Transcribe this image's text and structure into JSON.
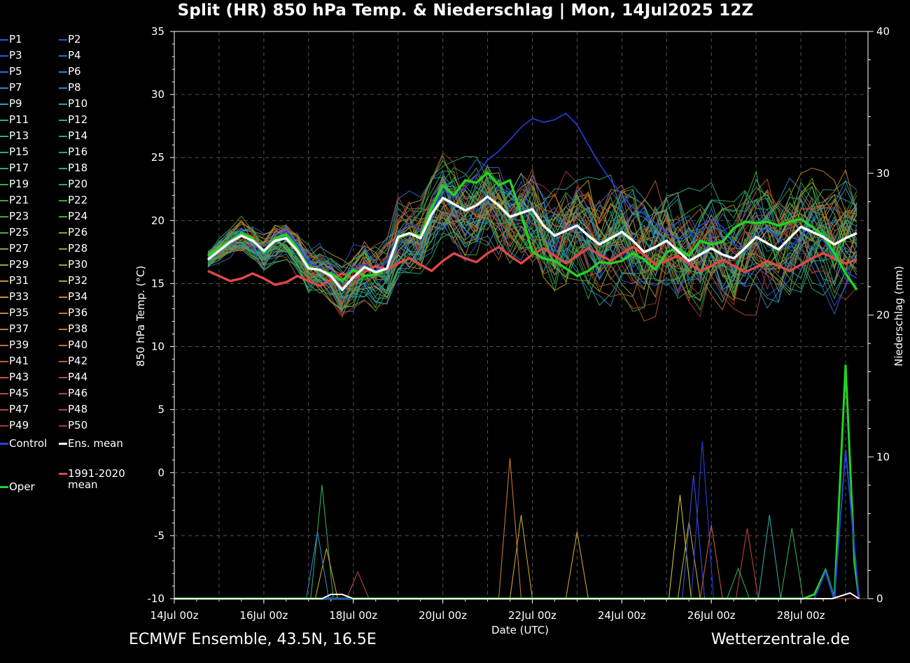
{
  "title": "Split  (HR)  850 hPa Temp. & Niederschlag | Mon, 14Jul2025 12Z",
  "footer_left": "ECMWF Ensemble, 43.5N, 16.5E",
  "footer_right": "Wetterzentrale.de",
  "legend": {
    "members": [
      "P1",
      "P2",
      "P3",
      "P4",
      "P5",
      "P6",
      "P7",
      "P8",
      "P9",
      "P10",
      "P11",
      "P12",
      "P13",
      "P14",
      "P15",
      "P16",
      "P17",
      "P18",
      "P19",
      "P20",
      "P21",
      "P22",
      "P23",
      "P24",
      "P25",
      "P26",
      "P27",
      "P28",
      "P29",
      "P30",
      "P31",
      "P32",
      "P33",
      "P34",
      "P35",
      "P36",
      "P37",
      "P38",
      "P39",
      "P40",
      "P41",
      "P42",
      "P43",
      "P44",
      "P45",
      "P46",
      "P47",
      "P48",
      "P49",
      "P50"
    ],
    "member_colors": [
      "#2f54d8",
      "#2e6ad8",
      "#2e86c8",
      "#2c9fb8",
      "#2aa9a0",
      "#29a888",
      "#2ea870",
      "#33aa55",
      "#3aaa3a",
      "#48b032",
      "#8aa82c",
      "#aaa02c",
      "#c09a2c",
      "#c88a2c",
      "#c8782e",
      "#c86a30",
      "#c85c32",
      "#b84c32",
      "#b84438",
      "#a83a2e"
    ],
    "control_label": "Control",
    "control_color": "#2a3ee0",
    "ens_mean_label": "Ens. mean",
    "ens_mean_color": "#ffffff",
    "clim_label_line1": "1991-2020",
    "clim_label_line2": "mean",
    "clim_color": "#e04848",
    "oper_label": "Oper",
    "oper_color": "#22d322"
  },
  "chart_data": {
    "type": "line",
    "ylabel": "850 hPa Temp. (°C)",
    "y2label": "Niederschlag (mm)",
    "xlabel": "Date (UTC)",
    "ylim": [
      -10,
      35
    ],
    "y2lim": [
      0,
      40
    ],
    "yticks": [
      "35",
      "30",
      "25",
      "20",
      "15",
      "10",
      "5",
      "0",
      "-5",
      "-10"
    ],
    "y2ticks": [
      "40",
      "30",
      "20",
      "10",
      "0"
    ],
    "x_start": "14Jul 00z",
    "x_end": "29Jul 12z",
    "xticks": [
      "14Jul 00z",
      "16Jul 00z",
      "18Jul 00z",
      "20Jul 00z",
      "22Jul 00z",
      "24Jul 00z",
      "26Jul 00z",
      "28Jul 00z"
    ],
    "grid": true,
    "series": [
      {
        "name": "Oper",
        "color": "#22d322",
        "x_days": [
          0.75,
          1,
          1.25,
          1.5,
          1.75,
          2,
          2.25,
          2.5,
          2.75,
          3,
          3.25,
          3.5,
          3.75,
          4,
          4.25,
          4.5,
          4.75,
          5,
          5.25,
          5.5,
          5.75,
          6,
          6.25,
          6.5,
          6.75,
          7,
          7.25,
          7.5,
          7.75,
          8,
          8.25,
          8.5,
          8.75,
          9,
          9.25,
          9.5,
          9.75,
          10,
          10.25,
          10.5,
          10.75,
          11,
          11.25,
          11.5,
          11.75,
          12,
          12.25,
          12.5,
          12.75,
          13,
          13.25,
          13.5,
          13.75,
          14,
          14.25,
          14.5,
          14.75,
          15,
          15.25
        ],
        "values": [
          17.2,
          17.8,
          18.4,
          19.0,
          18.6,
          17.4,
          18.6,
          18.9,
          17.8,
          16.3,
          16.0,
          15.8,
          15.2,
          16.1,
          15.6,
          15.7,
          16.2,
          18.6,
          19.0,
          18.8,
          21.0,
          22.8,
          22.0,
          23.2,
          23.0,
          23.8,
          22.8,
          23.2,
          20.5,
          17.5,
          17.0,
          16.8,
          16.2,
          15.6,
          16.0,
          16.7,
          16.6,
          16.8,
          17.4,
          16.9,
          16.1,
          17.5,
          17.8,
          17.2,
          18.4,
          18.1,
          18.3,
          19.4,
          19.9,
          19.8,
          19.9,
          19.6,
          19.9,
          20.1,
          19.5,
          18.8,
          17.4,
          15.8,
          14.5
        ]
      },
      {
        "name": "Ens. mean",
        "color": "#ffffff",
        "x_days": [
          0.75,
          1,
          1.25,
          1.5,
          1.75,
          2,
          2.25,
          2.5,
          2.75,
          3,
          3.25,
          3.5,
          3.75,
          4,
          4.25,
          4.5,
          4.75,
          5,
          5.25,
          5.5,
          5.75,
          6,
          6.25,
          6.5,
          6.75,
          7,
          7.25,
          7.5,
          7.75,
          8,
          8.25,
          8.5,
          8.75,
          9,
          9.25,
          9.5,
          9.75,
          10,
          10.25,
          10.5,
          10.75,
          11,
          11.25,
          11.5,
          11.75,
          12,
          12.25,
          12.5,
          12.75,
          13,
          13.25,
          13.5,
          13.75,
          14,
          14.25,
          14.5,
          14.75,
          15,
          15.25
        ],
        "values": [
          16.9,
          17.6,
          18.3,
          18.8,
          18.4,
          17.6,
          18.4,
          18.6,
          17.6,
          16.2,
          16.1,
          15.6,
          14.5,
          15.5,
          16.3,
          15.9,
          16.2,
          18.7,
          19.0,
          18.6,
          20.5,
          21.8,
          21.3,
          20.8,
          21.2,
          21.9,
          21.2,
          20.3,
          20.6,
          20.9,
          19.6,
          18.8,
          19.2,
          19.6,
          18.8,
          18.1,
          18.6,
          19.1,
          18.4,
          17.5,
          17.9,
          18.4,
          17.6,
          16.8,
          17.3,
          17.8,
          17.3,
          17.0,
          17.8,
          18.7,
          18.2,
          17.7,
          18.6,
          19.5,
          19.1,
          18.7,
          18.1,
          18.6,
          19.0
        ]
      },
      {
        "name": "Control",
        "color": "#2a3ee0",
        "x_days": [
          0.75,
          1,
          1.25,
          1.5,
          1.75,
          2,
          2.25,
          2.5,
          2.75,
          3,
          3.25,
          3.5,
          3.75,
          4,
          4.25,
          4.5,
          4.75,
          5,
          5.25,
          5.5,
          5.75,
          6,
          6.25,
          6.5,
          6.75,
          7,
          7.25,
          7.5,
          7.75,
          8,
          8.25,
          8.5,
          8.75,
          9,
          9.25,
          9.5,
          9.75,
          10,
          10.25,
          10.5,
          10.75,
          11,
          11.25,
          11.5,
          11.75,
          12,
          12.25,
          12.5,
          12.75,
          13,
          13.25,
          13.5,
          13.75,
          14,
          14.25,
          14.5,
          14.75,
          15,
          15.25
        ],
        "values": [
          17.0,
          17.6,
          18.2,
          19.3,
          18.3,
          17.2,
          18.6,
          19.2,
          18.1,
          16.6,
          16.4,
          16.1,
          15.2,
          16.4,
          16.5,
          16.0,
          16.8,
          19.0,
          19.8,
          19.2,
          20.6,
          22.4,
          21.8,
          22.6,
          23.6,
          24.8,
          25.5,
          26.4,
          27.4,
          28.1,
          27.8,
          28.0,
          28.5,
          27.6,
          26.0,
          24.5,
          23.2,
          22.0,
          21.0,
          20.5,
          19.8,
          19.0,
          18.5,
          18.8,
          19.6,
          20.1,
          19.5,
          18.2,
          17.6,
          18.9,
          19.4,
          18.5,
          17.8,
          18.8,
          19.6,
          18.4,
          17.2,
          16.0,
          15.4
        ]
      },
      {
        "name": "1991-2020 mean",
        "color": "#e04848",
        "x_days": [
          0.75,
          1,
          1.25,
          1.5,
          1.75,
          2,
          2.25,
          2.5,
          2.75,
          3,
          3.25,
          3.5,
          3.75,
          4,
          4.25,
          4.5,
          4.75,
          5,
          5.25,
          5.5,
          5.75,
          6,
          6.25,
          6.5,
          6.75,
          7,
          7.25,
          7.5,
          7.75,
          8,
          8.25,
          8.5,
          8.75,
          9,
          9.25,
          9.5,
          9.75,
          10,
          10.25,
          10.5,
          10.75,
          11,
          11.25,
          11.5,
          11.75,
          12,
          12.25,
          12.5,
          12.75,
          13,
          13.25,
          13.5,
          13.75,
          14,
          14.25,
          14.5,
          14.75,
          15,
          15.25
        ],
        "values": [
          16.0,
          15.6,
          15.2,
          15.4,
          15.8,
          15.4,
          14.9,
          15.1,
          15.6,
          15.2,
          14.8,
          15.3,
          15.8,
          15.4,
          15.9,
          16.4,
          16.1,
          16.6,
          17.0,
          16.5,
          16.0,
          16.8,
          17.4,
          17.0,
          16.7,
          17.4,
          17.9,
          17.2,
          16.6,
          17.3,
          17.8,
          17.2,
          16.6,
          17.2,
          17.8,
          17.3,
          16.8,
          17.4,
          17.9,
          17.3,
          16.5,
          16.8,
          17.2,
          16.6,
          16.0,
          16.4,
          16.9,
          16.4,
          15.9,
          16.3,
          16.8,
          16.4,
          16.0,
          16.5,
          17.0,
          17.4,
          17.0,
          16.6,
          16.9
        ]
      }
    ],
    "precip_series": [
      {
        "name": "Oper",
        "color": "#22d322",
        "x_days": [
          0,
          13.5,
          13.8,
          14.05,
          14.3,
          14.55,
          14.75,
          15.0,
          15.2,
          15.3
        ],
        "values": [
          0,
          0,
          0,
          0,
          0.3,
          2.0,
          0,
          16.5,
          2.5,
          0
        ]
      },
      {
        "name": "Control",
        "color": "#2a3ee0",
        "x_days": [
          0,
          14.3,
          14.55,
          14.75,
          15.0,
          15.3
        ],
        "values": [
          0,
          0,
          1.9,
          0,
          10.5,
          0
        ]
      },
      {
        "name": "Ens. mean",
        "color": "#ffffff",
        "x_days": [
          0,
          3.3,
          3.5,
          3.75,
          4.0,
          12.0,
          14.7,
          15.1,
          15.3
        ],
        "values": [
          0,
          0,
          0.3,
          0.3,
          0,
          0,
          0,
          0.4,
          0
        ]
      }
    ]
  }
}
